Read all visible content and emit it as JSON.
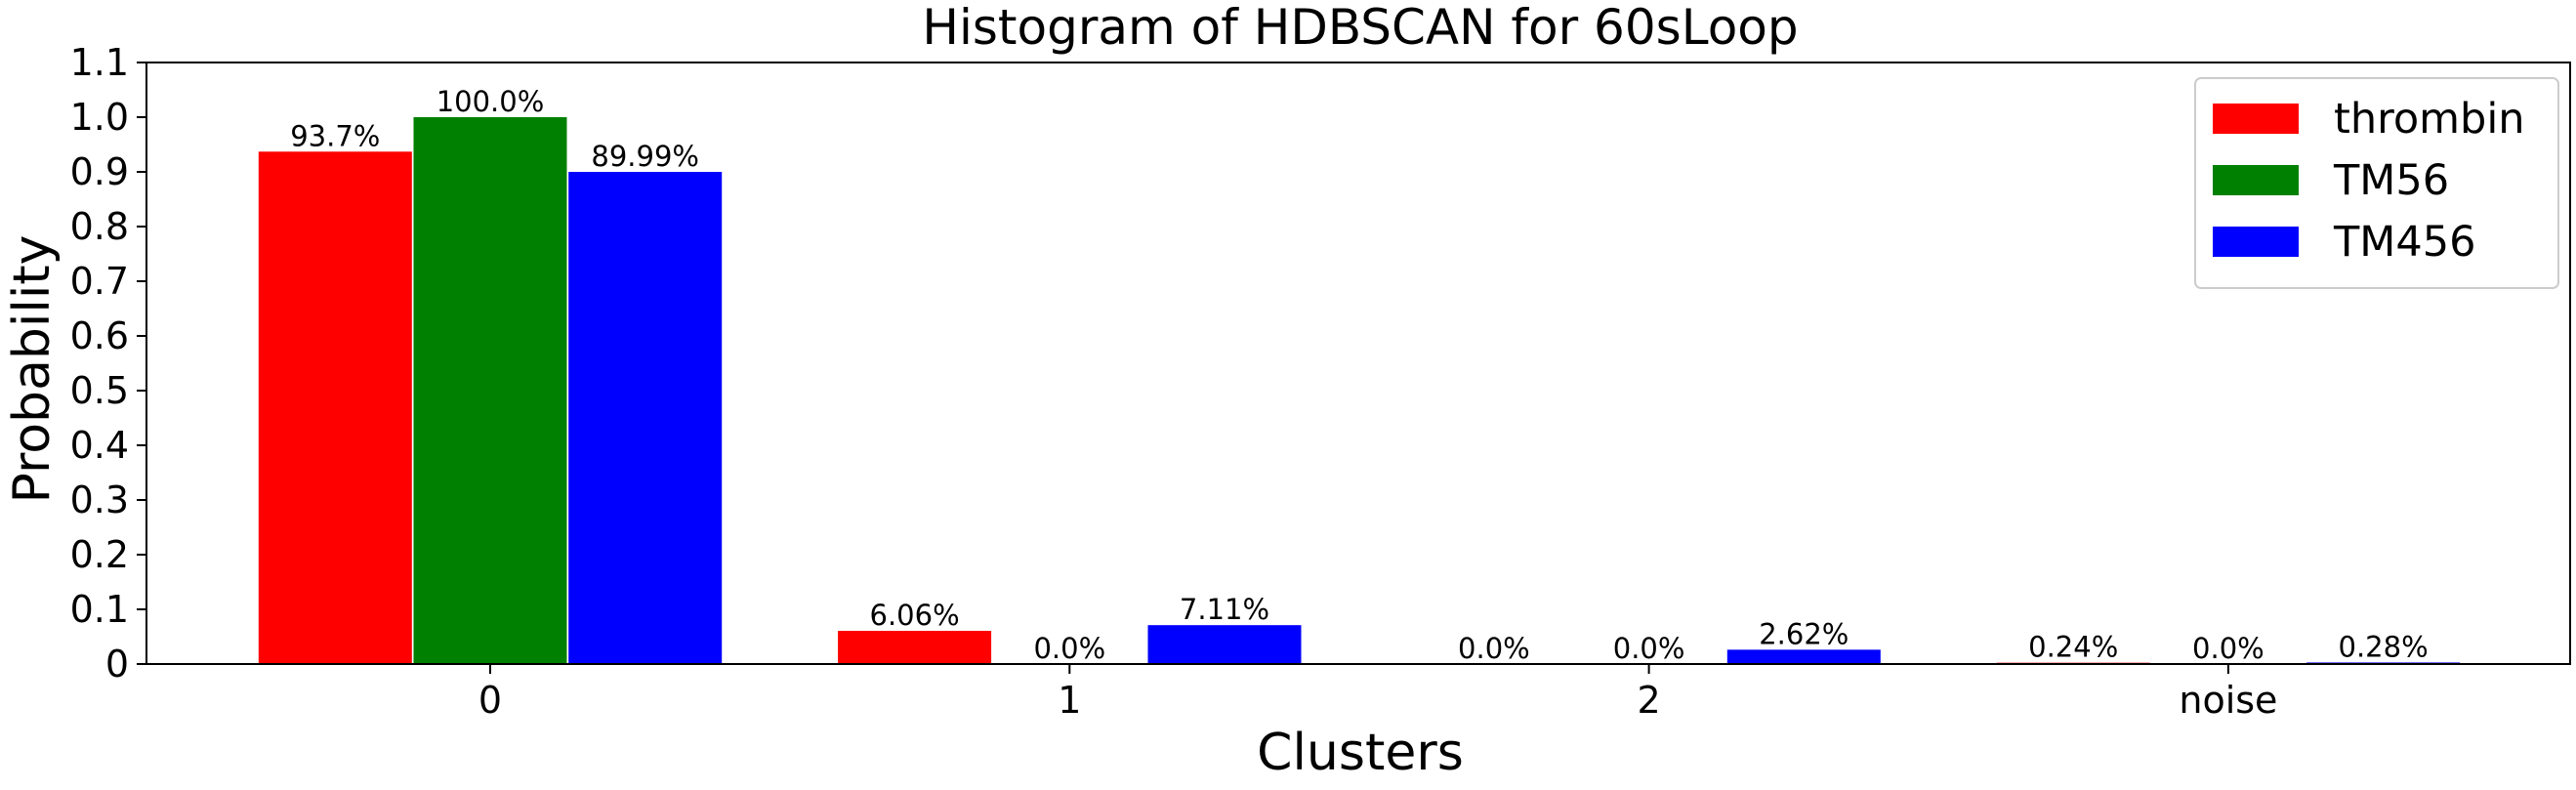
{
  "chart_data": {
    "type": "bar",
    "title": "Histogram of HDBSCAN for 60sLoop",
    "xlabel": "Clusters",
    "ylabel": "Probability",
    "categories": [
      "0",
      "1",
      "2",
      "noise"
    ],
    "ylim": [
      0,
      1.1
    ],
    "yticks": [
      "0",
      "0.1",
      "0.2",
      "0.3",
      "0.4",
      "0.5",
      "0.6",
      "0.7",
      "0.8",
      "0.9",
      "1.0",
      "1.1"
    ],
    "grid": false,
    "legend_position": "top-right",
    "series": [
      {
        "name": "thrombin",
        "color": "#ff0000",
        "values": [
          0.937,
          0.0606,
          0.0,
          0.0024
        ],
        "labels": [
          "93.7%",
          "6.06%",
          "0.0%",
          "0.24%"
        ]
      },
      {
        "name": "TM56",
        "color": "#008000",
        "values": [
          1.0,
          0.0,
          0.0,
          0.0
        ],
        "labels": [
          "100.0%",
          "0.0%",
          "0.0%",
          "0.0%"
        ]
      },
      {
        "name": "TM456",
        "color": "#0000ff",
        "values": [
          0.8999,
          0.0711,
          0.0262,
          0.0028
        ],
        "labels": [
          "89.99%",
          "7.11%",
          "2.62%",
          "0.28%"
        ]
      }
    ]
  }
}
